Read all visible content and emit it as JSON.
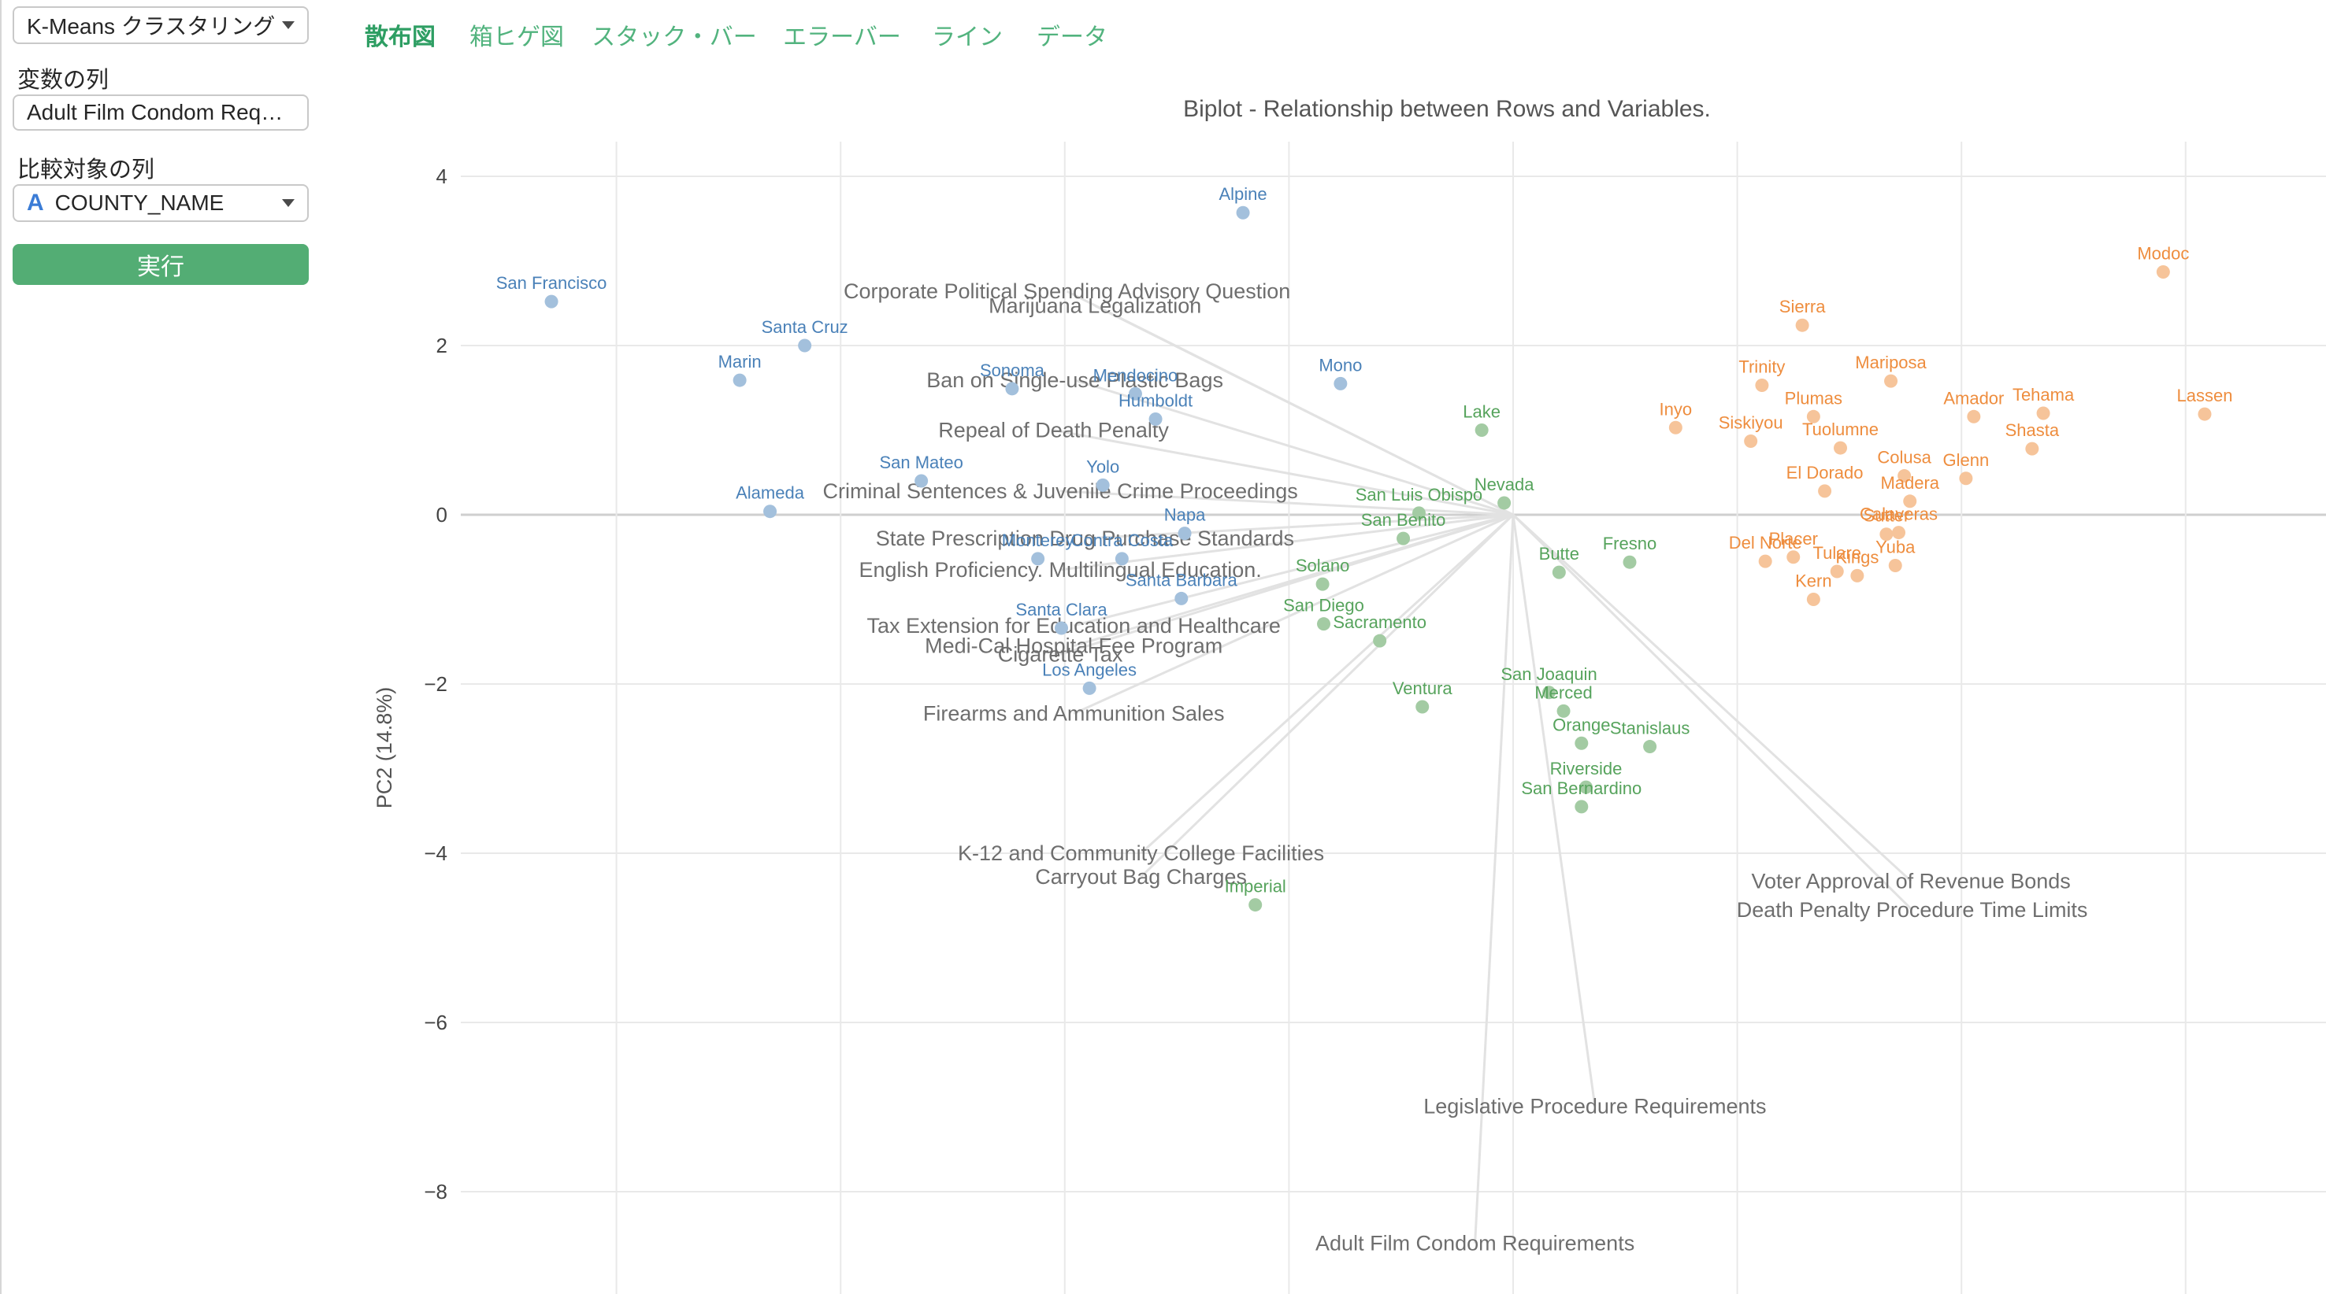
{
  "sidebar": {
    "analysis_select": "K-Means クラスタリング",
    "variable_label": "変数の列",
    "variable_value": "Adult Film Condom Requir…",
    "compare_label": "比較対象の列",
    "compare_type_icon": "A",
    "compare_value": "COUNTY_NAME",
    "run_button": "実行"
  },
  "tabs": [
    {
      "label": "散布図",
      "active": true
    },
    {
      "label": "箱ヒゲ図",
      "active": false
    },
    {
      "label": "スタック・バー",
      "active": false
    },
    {
      "label": "エラーバー",
      "active": false
    },
    {
      "label": "ライン",
      "active": false
    },
    {
      "label": "データ",
      "active": false
    }
  ],
  "colors": {
    "cluster_blue_label": "#4a81b8",
    "cluster_blue_point": "#a3c0dc",
    "cluster_green_label": "#56a35c",
    "cluster_green_point": "#a3cba3",
    "cluster_orange_label": "#ee8d3e",
    "cluster_orange_point": "#f6c49a",
    "loading_text": "#6e6e6e",
    "ray": "#e2e2e2",
    "gridline": "#e9e9e9",
    "zero_line": "#cfcfcf",
    "tick_text": "#444444",
    "title_text": "#555555",
    "tab_green": "#52b37e",
    "button_green": "#53ad74"
  },
  "chart_data": {
    "type": "scatter",
    "subtype": "pca-biplot",
    "title": "Biplot - Relationship between Rows and Variables.",
    "xlabel": "",
    "ylabel": "PC2 (14.8%)",
    "y_ticks": [
      4,
      2,
      0,
      -2,
      -4,
      -6,
      -8
    ],
    "x_gridlines": [
      -8,
      -6,
      -4,
      -2,
      0,
      2,
      4,
      6
    ],
    "xlim": [
      -9.4,
      7.25
    ],
    "ylim": [
      -9.2,
      4.4
    ],
    "grid": true,
    "legend_position": "none",
    "origin": {
      "x": 0,
      "y": 0
    },
    "series": [
      {
        "name": "cluster-1-blue",
        "points": [
          {
            "label": "Alpine",
            "x": -2.41,
            "y": 3.57
          },
          {
            "label": "San Francisco",
            "x": -8.58,
            "y": 2.52
          },
          {
            "label": "Santa Cruz",
            "x": -6.32,
            "y": 2.0
          },
          {
            "label": "Marin",
            "x": -6.9,
            "y": 1.59
          },
          {
            "label": "Sonoma",
            "x": -4.47,
            "y": 1.49
          },
          {
            "label": "Mendocino",
            "x": -3.37,
            "y": 1.43
          },
          {
            "label": "Mono",
            "x": -1.54,
            "y": 1.55
          },
          {
            "label": "Humboldt",
            "x": -3.19,
            "y": 1.13
          },
          {
            "label": "San Mateo",
            "x": -5.28,
            "y": 0.4
          },
          {
            "label": "Yolo",
            "x": -3.66,
            "y": 0.35
          },
          {
            "label": "Alameda",
            "x": -6.63,
            "y": 0.04
          },
          {
            "label": "Napa",
            "x": -2.93,
            "y": -0.22
          },
          {
            "label": "Monterey",
            "x": -4.24,
            "y": -0.52
          },
          {
            "label": "Contra Costa",
            "x": -3.49,
            "y": -0.52
          },
          {
            "label": "Santa Barbara",
            "x": -2.96,
            "y": -0.99
          },
          {
            "label": "Santa Clara",
            "x": -4.03,
            "y": -1.34
          },
          {
            "label": "Los Angeles",
            "x": -3.78,
            "y": -2.05
          }
        ]
      },
      {
        "name": "cluster-2-green",
        "points": [
          {
            "label": "Lake",
            "x": -0.28,
            "y": 1.0
          },
          {
            "label": "Nevada",
            "x": -0.08,
            "y": 0.14
          },
          {
            "label": "San Luis Obispo",
            "x": -0.84,
            "y": 0.02
          },
          {
            "label": "San Benito",
            "x": -0.98,
            "y": -0.28
          },
          {
            "label": "Solano",
            "x": -1.7,
            "y": -0.82
          },
          {
            "label": "Butte",
            "x": 0.41,
            "y": -0.68
          },
          {
            "label": "Fresno",
            "x": 1.04,
            "y": -0.56
          },
          {
            "label": "San Diego",
            "x": -1.69,
            "y": -1.29
          },
          {
            "label": "Sacramento",
            "x": -1.19,
            "y": -1.49
          },
          {
            "label": "Ventura",
            "x": -0.81,
            "y": -2.27
          },
          {
            "label": "San Joaquin",
            "x": 0.32,
            "y": -2.1
          },
          {
            "label": "Merced",
            "x": 0.45,
            "y": -2.32
          },
          {
            "label": "Orange",
            "x": 0.61,
            "y": -2.7
          },
          {
            "label": "Stanislaus",
            "x": 1.22,
            "y": -2.74
          },
          {
            "label": "Riverside",
            "x": 0.65,
            "y": -3.22
          },
          {
            "label": "San Bernardino",
            "x": 0.61,
            "y": -3.45
          },
          {
            "label": "Imperial",
            "x": -2.3,
            "y": -4.61
          }
        ]
      },
      {
        "name": "cluster-3-orange",
        "points": [
          {
            "label": "Modoc",
            "x": 5.8,
            "y": 2.87
          },
          {
            "label": "Sierra",
            "x": 2.58,
            "y": 2.24
          },
          {
            "label": "Mariposa",
            "x": 3.37,
            "y": 1.58
          },
          {
            "label": "Trinity",
            "x": 2.22,
            "y": 1.53
          },
          {
            "label": "Plumas",
            "x": 2.68,
            "y": 1.16
          },
          {
            "label": "Amador",
            "x": 4.11,
            "y": 1.16
          },
          {
            "label": "Tehama",
            "x": 4.73,
            "y": 1.2
          },
          {
            "label": "Lassen",
            "x": 6.17,
            "y": 1.19
          },
          {
            "label": "Inyo",
            "x": 1.45,
            "y": 1.03
          },
          {
            "label": "Siskiyou",
            "x": 2.12,
            "y": 0.87
          },
          {
            "label": "Tuolumne",
            "x": 2.92,
            "y": 0.79
          },
          {
            "label": "Shasta",
            "x": 4.63,
            "y": 0.78
          },
          {
            "label": "Colusa",
            "x": 3.49,
            "y": 0.46
          },
          {
            "label": "Glenn",
            "x": 4.04,
            "y": 0.43
          },
          {
            "label": "El Dorado",
            "x": 2.78,
            "y": 0.28
          },
          {
            "label": "Madera",
            "x": 3.54,
            "y": 0.16
          },
          {
            "label": "Sutter",
            "x": 3.33,
            "y": -0.23
          },
          {
            "label": "Calaveras",
            "x": 3.44,
            "y": -0.21
          },
          {
            "label": "Del Norte",
            "x": 2.25,
            "y": -0.55
          },
          {
            "label": "Placer",
            "x": 2.5,
            "y": -0.5
          },
          {
            "label": "Tulare",
            "x": 2.89,
            "y": -0.67
          },
          {
            "label": "Kings",
            "x": 3.07,
            "y": -0.72
          },
          {
            "label": "Yuba",
            "x": 3.41,
            "y": -0.6
          },
          {
            "label": "Kern",
            "x": 2.68,
            "y": -1.0
          }
        ]
      }
    ],
    "loadings": [
      {
        "label": "Corporate Political Spending Advisory Question",
        "x": -3.98,
        "y": 2.64
      },
      {
        "label": "Marijuana Legalization",
        "x": -3.73,
        "y": 2.47
      },
      {
        "label": "Ban on Single-use Plastic Bags",
        "x": -3.91,
        "y": 1.59
      },
      {
        "label": "Repeal of Death Penalty",
        "x": -4.1,
        "y": 1.0
      },
      {
        "label": "Criminal Sentences & Juvenile Crime Proceedings",
        "x": -4.04,
        "y": 0.28
      },
      {
        "label": "State Prescription Drug Purchase Standards",
        "x": -3.82,
        "y": -0.28
      },
      {
        "label": "English Proficiency. Multilingual Education.",
        "x": -4.04,
        "y": -0.65
      },
      {
        "label": "Tax Extension for Education and Healthcare",
        "x": -3.92,
        "y": -1.31
      },
      {
        "label": "Medi-Cal Hospital Fee Program",
        "x": -3.92,
        "y": -1.55
      },
      {
        "label": "Cigarette Tax",
        "x": -4.04,
        "y": -1.65
      },
      {
        "label": "Firearms and Ammunition Sales",
        "x": -3.92,
        "y": -2.35
      },
      {
        "label": "K-12 and Community College Facilities",
        "x": -3.32,
        "y": -4.0
      },
      {
        "label": "Carryout Bag Charges",
        "x": -3.32,
        "y": -4.28
      },
      {
        "label": "Voter Approval of Revenue Bonds",
        "x": 3.55,
        "y": -4.33
      },
      {
        "label": "Death Penalty Procedure Time Limits",
        "x": 3.56,
        "y": -4.67
      },
      {
        "label": "Legislative Procedure Requirements",
        "x": 0.73,
        "y": -6.99
      },
      {
        "label": "Adult Film Condom Requirements",
        "x": -0.34,
        "y": -8.61
      }
    ]
  }
}
